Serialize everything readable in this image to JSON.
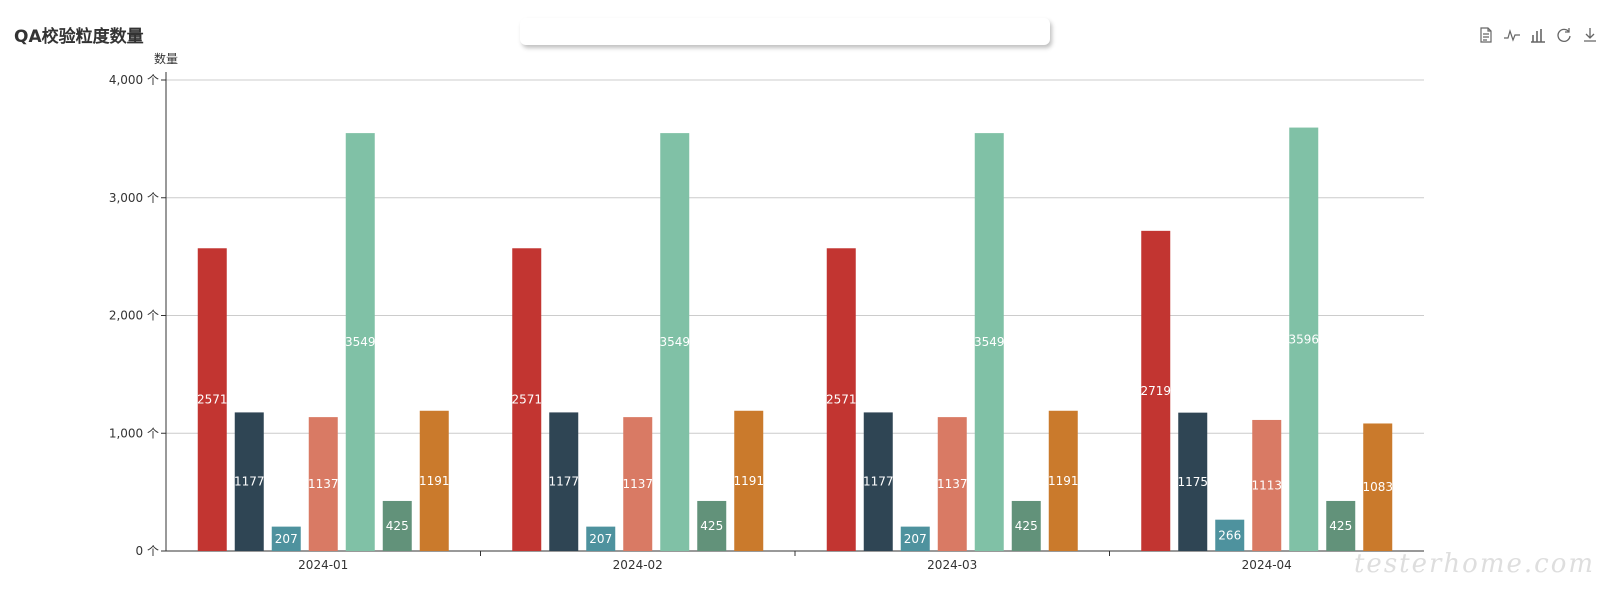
{
  "title": "QA校验粒度数量",
  "toolbox": [
    {
      "name": "data-view-icon"
    },
    {
      "name": "line-chart-icon"
    },
    {
      "name": "bar-chart-icon"
    },
    {
      "name": "restore-icon"
    },
    {
      "name": "download-icon"
    }
  ],
  "watermark": "testerhome.com",
  "chart_data": {
    "type": "bar",
    "ylabel": "数量",
    "xlabel": "",
    "ylim": [
      0,
      4000
    ],
    "yticks": [
      "0 个",
      "1,000 个",
      "2,000 个",
      "3,000 个",
      "4,000 个"
    ],
    "categories": [
      "2024-01",
      "2024-02",
      "2024-03",
      "2024-04"
    ],
    "grid": true,
    "series": [
      {
        "color": "#c23531",
        "values": [
          2571,
          2571,
          2571,
          2719
        ]
      },
      {
        "color": "#2f4554",
        "values": [
          1177,
          1177,
          1177,
          1175
        ]
      },
      {
        "color": "#4e929e",
        "values": [
          207,
          207,
          207,
          266
        ]
      },
      {
        "color": "#d97a64",
        "values": [
          1137,
          1137,
          1137,
          1113
        ]
      },
      {
        "color": "#80c1a6",
        "values": [
          3549,
          3549,
          3549,
          3596
        ]
      },
      {
        "color": "#62927a",
        "values": [
          425,
          425,
          425,
          425
        ]
      },
      {
        "color": "#ca7a2c",
        "values": [
          1191,
          1191,
          1191,
          1083
        ]
      }
    ]
  }
}
